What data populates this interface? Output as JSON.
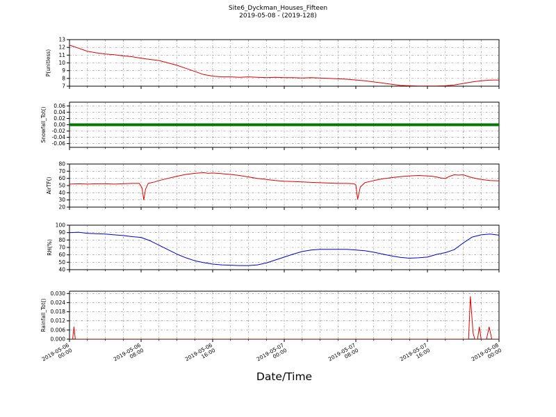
{
  "header": {
    "title": "Site6_Dyckman_Houses_Fifteen",
    "subtitle": "2019-05-08 - (2019-128)"
  },
  "xlabel": "Date/Time",
  "x_axis": {
    "min_hours": 0,
    "max_hours": 48,
    "major_tick_hours": [
      0,
      8,
      16,
      24,
      32,
      40,
      48
    ],
    "minor_tick_step_hours": 2,
    "tick_labels": [
      [
        "2019-05-06",
        "00:00"
      ],
      [
        "2019-05-06",
        "08:00"
      ],
      [
        "2019-05-06",
        "16:00"
      ],
      [
        "2019-05-07",
        "00:00"
      ],
      [
        "2019-05-07",
        "08:00"
      ],
      [
        "2019-05-07",
        "16:00"
      ],
      [
        "2019-05-08",
        "00:00"
      ]
    ]
  },
  "chart_data": [
    {
      "type": "line",
      "name": "p-unitless",
      "ylabel": "P(unitless)",
      "ylim": [
        7,
        13
      ],
      "yticks": [
        13,
        12,
        11,
        10,
        9,
        8,
        7
      ],
      "ytick_labels": [
        "13",
        "12",
        "11",
        "10",
        "9",
        "8",
        "7"
      ],
      "color": "#dd0000",
      "line_width": 1,
      "x_hours": [
        0,
        0.5,
        1,
        1.5,
        2,
        3,
        4,
        5,
        6,
        7,
        8,
        9,
        10,
        11,
        12,
        13,
        14,
        15,
        16,
        17,
        18,
        19,
        20,
        21,
        22,
        23,
        24,
        25,
        26,
        27,
        28,
        29,
        30,
        31,
        32,
        33,
        34,
        35,
        36,
        37,
        38,
        39,
        40,
        41,
        42,
        43,
        44,
        45,
        46,
        47,
        48
      ],
      "values": [
        12.3,
        12.1,
        11.9,
        11.7,
        11.5,
        11.3,
        11.15,
        11.05,
        10.9,
        10.8,
        10.6,
        10.45,
        10.3,
        10.0,
        9.7,
        9.3,
        8.9,
        8.5,
        8.3,
        8.2,
        8.2,
        8.15,
        8.2,
        8.15,
        8.1,
        8.15,
        8.1,
        8.1,
        8.05,
        8.1,
        8.05,
        8.0,
        7.95,
        7.9,
        7.8,
        7.7,
        7.55,
        7.4,
        7.25,
        7.1,
        7.05,
        7.02,
        7.02,
        7.02,
        7.05,
        7.15,
        7.35,
        7.55,
        7.7,
        7.78,
        7.8
      ]
    },
    {
      "type": "line",
      "name": "snowfall-tot",
      "ylabel": "Snowfall_Tot()",
      "ylim": [
        -0.072,
        0.072
      ],
      "yticks": [
        0.06,
        0.04,
        0.02,
        0,
        -0.02,
        -0.04,
        -0.06
      ],
      "ytick_labels": [
        "0.06",
        "0.04",
        "0.02",
        "0.00",
        "-0.02",
        "-0.04",
        "-0.06"
      ],
      "color": "#007700",
      "line_width": 4,
      "x_hours": [
        0,
        48
      ],
      "values": [
        0,
        0
      ]
    },
    {
      "type": "line",
      "name": "airtf",
      "ylabel": "AirTF()",
      "ylim": [
        20,
        80
      ],
      "yticks": [
        80,
        70,
        60,
        50,
        40,
        30,
        20
      ],
      "ytick_labels": [
        "80",
        "70",
        "60",
        "50",
        "40",
        "30",
        "20"
      ],
      "color": "#dd0000",
      "line_width": 1,
      "x_hours": [
        0,
        1,
        2,
        3,
        4,
        5,
        6,
        7,
        7.8,
        8.1,
        8.3,
        8.5,
        8.8,
        9.5,
        10,
        11,
        12,
        13,
        14,
        15,
        15.5,
        16,
        17,
        18,
        19,
        20,
        21,
        22,
        23,
        24,
        25,
        26,
        27,
        28,
        29,
        30,
        31,
        31.8,
        32,
        32.2,
        32.5,
        33,
        34,
        35,
        36,
        37,
        38,
        39,
        40,
        40.5,
        41,
        41.5,
        42,
        42.5,
        43,
        43.5,
        44,
        44.5,
        45,
        46,
        47,
        48
      ],
      "values": [
        52,
        52.5,
        52,
        52.5,
        52.5,
        52,
        52.5,
        53,
        53,
        47,
        30,
        45,
        53,
        55,
        57,
        60,
        63,
        65.5,
        67,
        68,
        67,
        67.5,
        66.5,
        65.5,
        64,
        62,
        60,
        58.5,
        57,
        56,
        55.5,
        55,
        54.5,
        54,
        53.5,
        53,
        53,
        52.5,
        51,
        31,
        48,
        54,
        57,
        59.5,
        61,
        62.5,
        63.5,
        64,
        63.5,
        63,
        62,
        60.5,
        60,
        63,
        65,
        64.5,
        65,
        63,
        61,
        58.5,
        57,
        56.5
      ]
    },
    {
      "type": "line",
      "name": "rh",
      "ylabel": "RH(%)",
      "ylim": [
        40,
        100
      ],
      "yticks": [
        100,
        90,
        80,
        70,
        60,
        50,
        40
      ],
      "ytick_labels": [
        "100",
        "90",
        "80",
        "70",
        "60",
        "50",
        "40"
      ],
      "color": "#0000cc",
      "line_width": 1,
      "x_hours": [
        0,
        1,
        2,
        3,
        4,
        5,
        6,
        7,
        8,
        9,
        10,
        11,
        12,
        13,
        14,
        15,
        16,
        17,
        18,
        19,
        20,
        21,
        22,
        23,
        24,
        25,
        26,
        27,
        28,
        29,
        30,
        31,
        32,
        33,
        34,
        35,
        36,
        37,
        38,
        39,
        40,
        41,
        42,
        43,
        44,
        45,
        46,
        47,
        48
      ],
      "values": [
        90,
        90.5,
        89,
        88.5,
        88,
        87,
        86,
        84.5,
        83.5,
        79,
        73,
        67,
        61,
        56,
        52,
        49.5,
        47.5,
        46.5,
        46,
        45.5,
        45.5,
        46.5,
        49,
        53,
        57,
        61,
        64.5,
        66.5,
        67.5,
        67.5,
        67.5,
        67.5,
        66.5,
        65.5,
        63.5,
        61,
        58.5,
        56.5,
        55.5,
        56,
        57,
        60.5,
        63,
        67,
        76,
        84,
        87,
        88,
        86.5
      ]
    },
    {
      "type": "line",
      "name": "rainfall-tot",
      "ylabel": "Rainfall_Tot()",
      "ylim": [
        0,
        0.0315
      ],
      "yticks": [
        0.03,
        0.024,
        0.018,
        0.012,
        0.006,
        0.0
      ],
      "ytick_labels": [
        "0.030",
        "0.024",
        "0.018",
        "0.012",
        "0.006",
        "0.000"
      ],
      "color": "#dd0000",
      "line_width": 1,
      "x_hours": [
        0,
        0.35,
        0.5,
        0.65,
        2,
        6,
        10,
        14,
        18,
        22,
        26,
        30,
        34,
        38,
        42,
        44,
        44.6,
        44.8,
        45.1,
        45.3,
        45.6,
        45.8,
        46.0,
        46.6,
        46.9,
        47.2,
        48
      ],
      "values": [
        0,
        0,
        0.008,
        0,
        0,
        0,
        0,
        0,
        0,
        0,
        0,
        0,
        0,
        0,
        0,
        0,
        0,
        0.028,
        0.004,
        0,
        0,
        0.008,
        0,
        0,
        0.008,
        0,
        0
      ]
    }
  ]
}
